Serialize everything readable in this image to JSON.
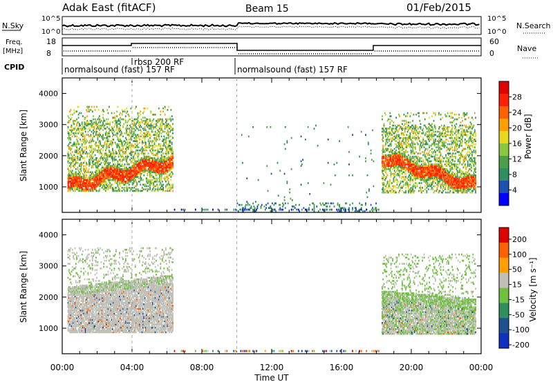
{
  "header": {
    "station": "Adak East (fitACF)",
    "beam": "Beam 15",
    "date": "01/Feb/2015"
  },
  "noise_panel": {
    "left_label": "N.Sky",
    "right_label": "N.Search",
    "tick_top": "10^5",
    "tick_bottom": "10^0"
  },
  "freq_panel": {
    "left_label_1": "Freq.",
    "left_label_2": "[MHz]",
    "left_tick_top": "18",
    "left_tick_bottom": "8",
    "right_label": "Nave",
    "right_tick_top": "60",
    "right_tick_bottom": "0"
  },
  "cpid": {
    "label": "CPID",
    "segments": [
      {
        "text": "normalsound (fast) 157 RF"
      },
      {
        "text": "rbsp 200 RF"
      },
      {
        "text": "normalsound (fast) 157 RF"
      }
    ]
  },
  "time_axis": {
    "label": "Time UT",
    "ticks": [
      "00:00",
      "04:00",
      "08:00",
      "12:00",
      "16:00",
      "20:00",
      "00:00"
    ]
  },
  "range_axis": {
    "label": "Slant Range [km]",
    "ticks": [
      "1000",
      "2000",
      "3000",
      "4000"
    ]
  },
  "chart_data": [
    {
      "type": "heatmap",
      "title": "",
      "xlabel": "Time UT",
      "ylabel": "Slant Range [km]",
      "xlim": [
        0,
        24
      ],
      "ylim": [
        180,
        4500
      ],
      "colorbar": {
        "label": "Power [dB]",
        "ticks": [
          "4",
          "8",
          "12",
          "16",
          "20",
          "24",
          "28"
        ],
        "range": [
          0,
          30
        ],
        "colors": [
          "#0000ff",
          "#2050b0",
          "#2f8f5f",
          "#4aa04a",
          "#8cc63e",
          "#e8d820",
          "#ffa000",
          "#ff6000",
          "#ff2000",
          "#e00000"
        ]
      },
      "regions": [
        {
          "t0": 0.3,
          "t1": 6.3,
          "r0": 850,
          "r1": 3600,
          "level": "high"
        },
        {
          "t0": 18.3,
          "t1": 23.7,
          "r0": 800,
          "r1": 3400,
          "level": "high"
        },
        {
          "t0": 10.0,
          "t1": 18.0,
          "r0": 200,
          "r1": 3000,
          "level": "sparse"
        }
      ]
    },
    {
      "type": "heatmap",
      "title": "",
      "xlabel": "Time UT",
      "ylabel": "Slant Range [km]",
      "xlim": [
        0,
        24
      ],
      "ylim": [
        180,
        4500
      ],
      "colorbar": {
        "label": "Velocity [m s⁻¹]",
        "ticks": [
          "200",
          "100",
          "50",
          "15",
          "-15",
          "-50",
          "-100",
          "-200"
        ],
        "range": [
          -250,
          250
        ],
        "colors": [
          "#1030c0",
          "#205090",
          "#2f8f5f",
          "#70c040",
          "#c0c0b8",
          "#ffa000",
          "#ff6000",
          "#e00000"
        ]
      },
      "regions": [
        {
          "t0": 0.3,
          "t1": 6.3,
          "r0": 850,
          "r1": 3600,
          "level": "ground"
        },
        {
          "t0": 18.3,
          "t1": 23.7,
          "r0": 800,
          "r1": 3400,
          "level": "ground"
        }
      ]
    }
  ]
}
